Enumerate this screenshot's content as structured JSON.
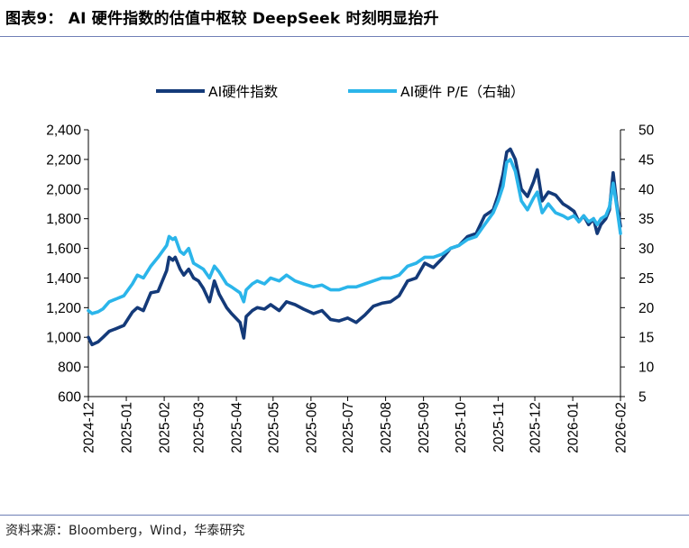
{
  "figure": {
    "title": "图表9： AI 硬件指数的估值中枢较 DeepSeek 时刻明显抬升",
    "source": "资料来源：Bloomberg，Wind，华泰研究"
  },
  "colors": {
    "series_index": "#143a79",
    "series_pe": "#2bb5ea",
    "rule": "#6f7fb6",
    "axis": "#000000"
  },
  "chart_data": {
    "type": "line",
    "title": "",
    "legend_position": "top-center",
    "grid": false,
    "x_labels": [
      "2024-12",
      "2025-01",
      "2025-02",
      "2025-03",
      "2025-04",
      "2025-05",
      "2025-06",
      "2025-07",
      "2025-08",
      "2025-09",
      "2025-10",
      "2025-11",
      "2025-12",
      "2026-01",
      "2026-02"
    ],
    "xlim": [
      "2024-12-01",
      "2026-02-09"
    ],
    "y_left": {
      "lim": [
        600,
        2400
      ],
      "ticks": [
        "600",
        "800",
        "1,000",
        "1,200",
        "1,400",
        "1,600",
        "1,800",
        "2,000",
        "2,200",
        "2,400"
      ]
    },
    "y_right": {
      "lim": [
        5,
        50
      ],
      "ticks": [
        "5",
        "10",
        "15",
        "20",
        "25",
        "30",
        "35",
        "40",
        "45",
        "50"
      ]
    },
    "series": [
      {
        "name": "AI硬件指数",
        "axis": "left",
        "points": [
          [
            "2024-12-01",
            1000
          ],
          [
            "2024-12-04",
            950
          ],
          [
            "2024-12-09",
            970
          ],
          [
            "2024-12-13",
            1000
          ],
          [
            "2024-12-18",
            1040
          ],
          [
            "2024-12-24",
            1060
          ],
          [
            "2024-12-30",
            1080
          ],
          [
            "2025-01-06",
            1170
          ],
          [
            "2025-01-10",
            1200
          ],
          [
            "2025-01-15",
            1180
          ],
          [
            "2025-01-21",
            1300
          ],
          [
            "2025-01-27",
            1310
          ],
          [
            "2025-02-03",
            1450
          ],
          [
            "2025-02-05",
            1540
          ],
          [
            "2025-02-08",
            1520
          ],
          [
            "2025-02-10",
            1540
          ],
          [
            "2025-02-14",
            1460
          ],
          [
            "2025-02-17",
            1420
          ],
          [
            "2025-02-21",
            1460
          ],
          [
            "2025-02-25",
            1400
          ],
          [
            "2025-03-01",
            1380
          ],
          [
            "2025-03-05",
            1330
          ],
          [
            "2025-03-10",
            1240
          ],
          [
            "2025-03-14",
            1380
          ],
          [
            "2025-03-18",
            1290
          ],
          [
            "2025-03-24",
            1200
          ],
          [
            "2025-03-28",
            1160
          ],
          [
            "2025-04-04",
            1100
          ],
          [
            "2025-04-07",
            995
          ],
          [
            "2025-04-09",
            1140
          ],
          [
            "2025-04-14",
            1180
          ],
          [
            "2025-04-18",
            1200
          ],
          [
            "2025-04-24",
            1190
          ],
          [
            "2025-04-29",
            1220
          ],
          [
            "2025-05-06",
            1180
          ],
          [
            "2025-05-12",
            1240
          ],
          [
            "2025-05-19",
            1220
          ],
          [
            "2025-05-26",
            1190
          ],
          [
            "2025-06-03",
            1160
          ],
          [
            "2025-06-10",
            1180
          ],
          [
            "2025-06-17",
            1120
          ],
          [
            "2025-06-24",
            1110
          ],
          [
            "2025-07-01",
            1130
          ],
          [
            "2025-07-08",
            1100
          ],
          [
            "2025-07-15",
            1150
          ],
          [
            "2025-07-22",
            1210
          ],
          [
            "2025-07-29",
            1230
          ],
          [
            "2025-08-05",
            1240
          ],
          [
            "2025-08-12",
            1280
          ],
          [
            "2025-08-19",
            1380
          ],
          [
            "2025-08-26",
            1400
          ],
          [
            "2025-09-02",
            1500
          ],
          [
            "2025-09-09",
            1470
          ],
          [
            "2025-09-16",
            1530
          ],
          [
            "2025-09-23",
            1600
          ],
          [
            "2025-09-30",
            1620
          ],
          [
            "2025-10-07",
            1680
          ],
          [
            "2025-10-14",
            1700
          ],
          [
            "2025-10-21",
            1820
          ],
          [
            "2025-10-28",
            1860
          ],
          [
            "2025-11-01",
            1960
          ],
          [
            "2025-11-05",
            2100
          ],
          [
            "2025-11-08",
            2250
          ],
          [
            "2025-11-11",
            2270
          ],
          [
            "2025-11-15",
            2200
          ],
          [
            "2025-11-20",
            2000
          ],
          [
            "2025-11-25",
            1950
          ],
          [
            "2025-11-30",
            2050
          ],
          [
            "2025-12-03",
            2130
          ],
          [
            "2025-12-07",
            1920
          ],
          [
            "2025-12-12",
            1980
          ],
          [
            "2025-12-18",
            1960
          ],
          [
            "2025-12-24",
            1900
          ],
          [
            "2025-12-28",
            1880
          ],
          [
            "2026-01-02",
            1850
          ],
          [
            "2026-01-06",
            1780
          ],
          [
            "2026-01-10",
            1820
          ],
          [
            "2026-01-14",
            1760
          ],
          [
            "2026-01-18",
            1800
          ],
          [
            "2026-01-21",
            1700
          ],
          [
            "2026-01-24",
            1760
          ],
          [
            "2026-01-28",
            1800
          ],
          [
            "2026-01-31",
            1860
          ],
          [
            "2026-02-03",
            2110
          ],
          [
            "2026-02-06",
            1900
          ],
          [
            "2026-02-09",
            1750
          ]
        ]
      },
      {
        "name": "AI硬件 P/E（右轴）",
        "axis": "right",
        "points": [
          [
            "2024-12-01",
            19.5
          ],
          [
            "2024-12-04",
            19.0
          ],
          [
            "2024-12-09",
            19.3
          ],
          [
            "2024-12-13",
            19.8
          ],
          [
            "2024-12-18",
            21.0
          ],
          [
            "2024-12-24",
            21.5
          ],
          [
            "2024-12-30",
            22.0
          ],
          [
            "2025-01-06",
            24.0
          ],
          [
            "2025-01-10",
            25.5
          ],
          [
            "2025-01-15",
            25.0
          ],
          [
            "2025-01-21",
            27.0
          ],
          [
            "2025-01-27",
            28.5
          ],
          [
            "2025-02-03",
            30.5
          ],
          [
            "2025-02-05",
            32.0
          ],
          [
            "2025-02-08",
            31.5
          ],
          [
            "2025-02-10",
            31.8
          ],
          [
            "2025-02-14",
            29.5
          ],
          [
            "2025-02-17",
            29.0
          ],
          [
            "2025-02-21",
            30.0
          ],
          [
            "2025-02-25",
            27.5
          ],
          [
            "2025-03-01",
            27.0
          ],
          [
            "2025-03-05",
            26.5
          ],
          [
            "2025-03-10",
            25.0
          ],
          [
            "2025-03-14",
            27.0
          ],
          [
            "2025-03-18",
            26.0
          ],
          [
            "2025-03-24",
            24.0
          ],
          [
            "2025-03-28",
            23.5
          ],
          [
            "2025-04-04",
            22.5
          ],
          [
            "2025-04-07",
            21.0
          ],
          [
            "2025-04-09",
            23.0
          ],
          [
            "2025-04-14",
            24.0
          ],
          [
            "2025-04-18",
            24.5
          ],
          [
            "2025-04-24",
            24.0
          ],
          [
            "2025-04-29",
            25.0
          ],
          [
            "2025-05-06",
            24.5
          ],
          [
            "2025-05-12",
            25.5
          ],
          [
            "2025-05-19",
            24.5
          ],
          [
            "2025-05-26",
            24.0
          ],
          [
            "2025-06-03",
            23.5
          ],
          [
            "2025-06-10",
            23.8
          ],
          [
            "2025-06-17",
            23.0
          ],
          [
            "2025-06-24",
            23.0
          ],
          [
            "2025-07-01",
            23.5
          ],
          [
            "2025-07-08",
            23.5
          ],
          [
            "2025-07-15",
            24.0
          ],
          [
            "2025-07-22",
            24.5
          ],
          [
            "2025-07-29",
            25.0
          ],
          [
            "2025-08-05",
            25.0
          ],
          [
            "2025-08-12",
            25.5
          ],
          [
            "2025-08-19",
            27.0
          ],
          [
            "2025-08-26",
            27.5
          ],
          [
            "2025-09-02",
            28.5
          ],
          [
            "2025-09-09",
            28.5
          ],
          [
            "2025-09-16",
            29.0
          ],
          [
            "2025-09-23",
            30.0
          ],
          [
            "2025-09-30",
            30.5
          ],
          [
            "2025-10-07",
            31.5
          ],
          [
            "2025-10-14",
            32.0
          ],
          [
            "2025-10-21",
            34.0
          ],
          [
            "2025-10-28",
            36.0
          ],
          [
            "2025-11-01",
            38.0
          ],
          [
            "2025-11-05",
            40.5
          ],
          [
            "2025-11-08",
            44.5
          ],
          [
            "2025-11-11",
            45.0
          ],
          [
            "2025-11-15",
            43.0
          ],
          [
            "2025-11-20",
            38.0
          ],
          [
            "2025-11-25",
            36.5
          ],
          [
            "2025-11-30",
            38.5
          ],
          [
            "2025-12-03",
            39.5
          ],
          [
            "2025-12-07",
            36.0
          ],
          [
            "2025-12-12",
            37.5
          ],
          [
            "2025-12-18",
            36.0
          ],
          [
            "2025-12-24",
            35.5
          ],
          [
            "2025-12-28",
            35.0
          ],
          [
            "2026-01-02",
            35.5
          ],
          [
            "2026-01-06",
            34.5
          ],
          [
            "2026-01-10",
            35.5
          ],
          [
            "2026-01-14",
            34.5
          ],
          [
            "2026-01-18",
            35.0
          ],
          [
            "2026-01-21",
            34.0
          ],
          [
            "2026-01-24",
            35.0
          ],
          [
            "2026-01-28",
            35.5
          ],
          [
            "2026-01-31",
            37.0
          ],
          [
            "2026-02-03",
            41.0
          ],
          [
            "2026-02-06",
            37.0
          ],
          [
            "2026-02-09",
            32.5
          ]
        ]
      }
    ]
  }
}
